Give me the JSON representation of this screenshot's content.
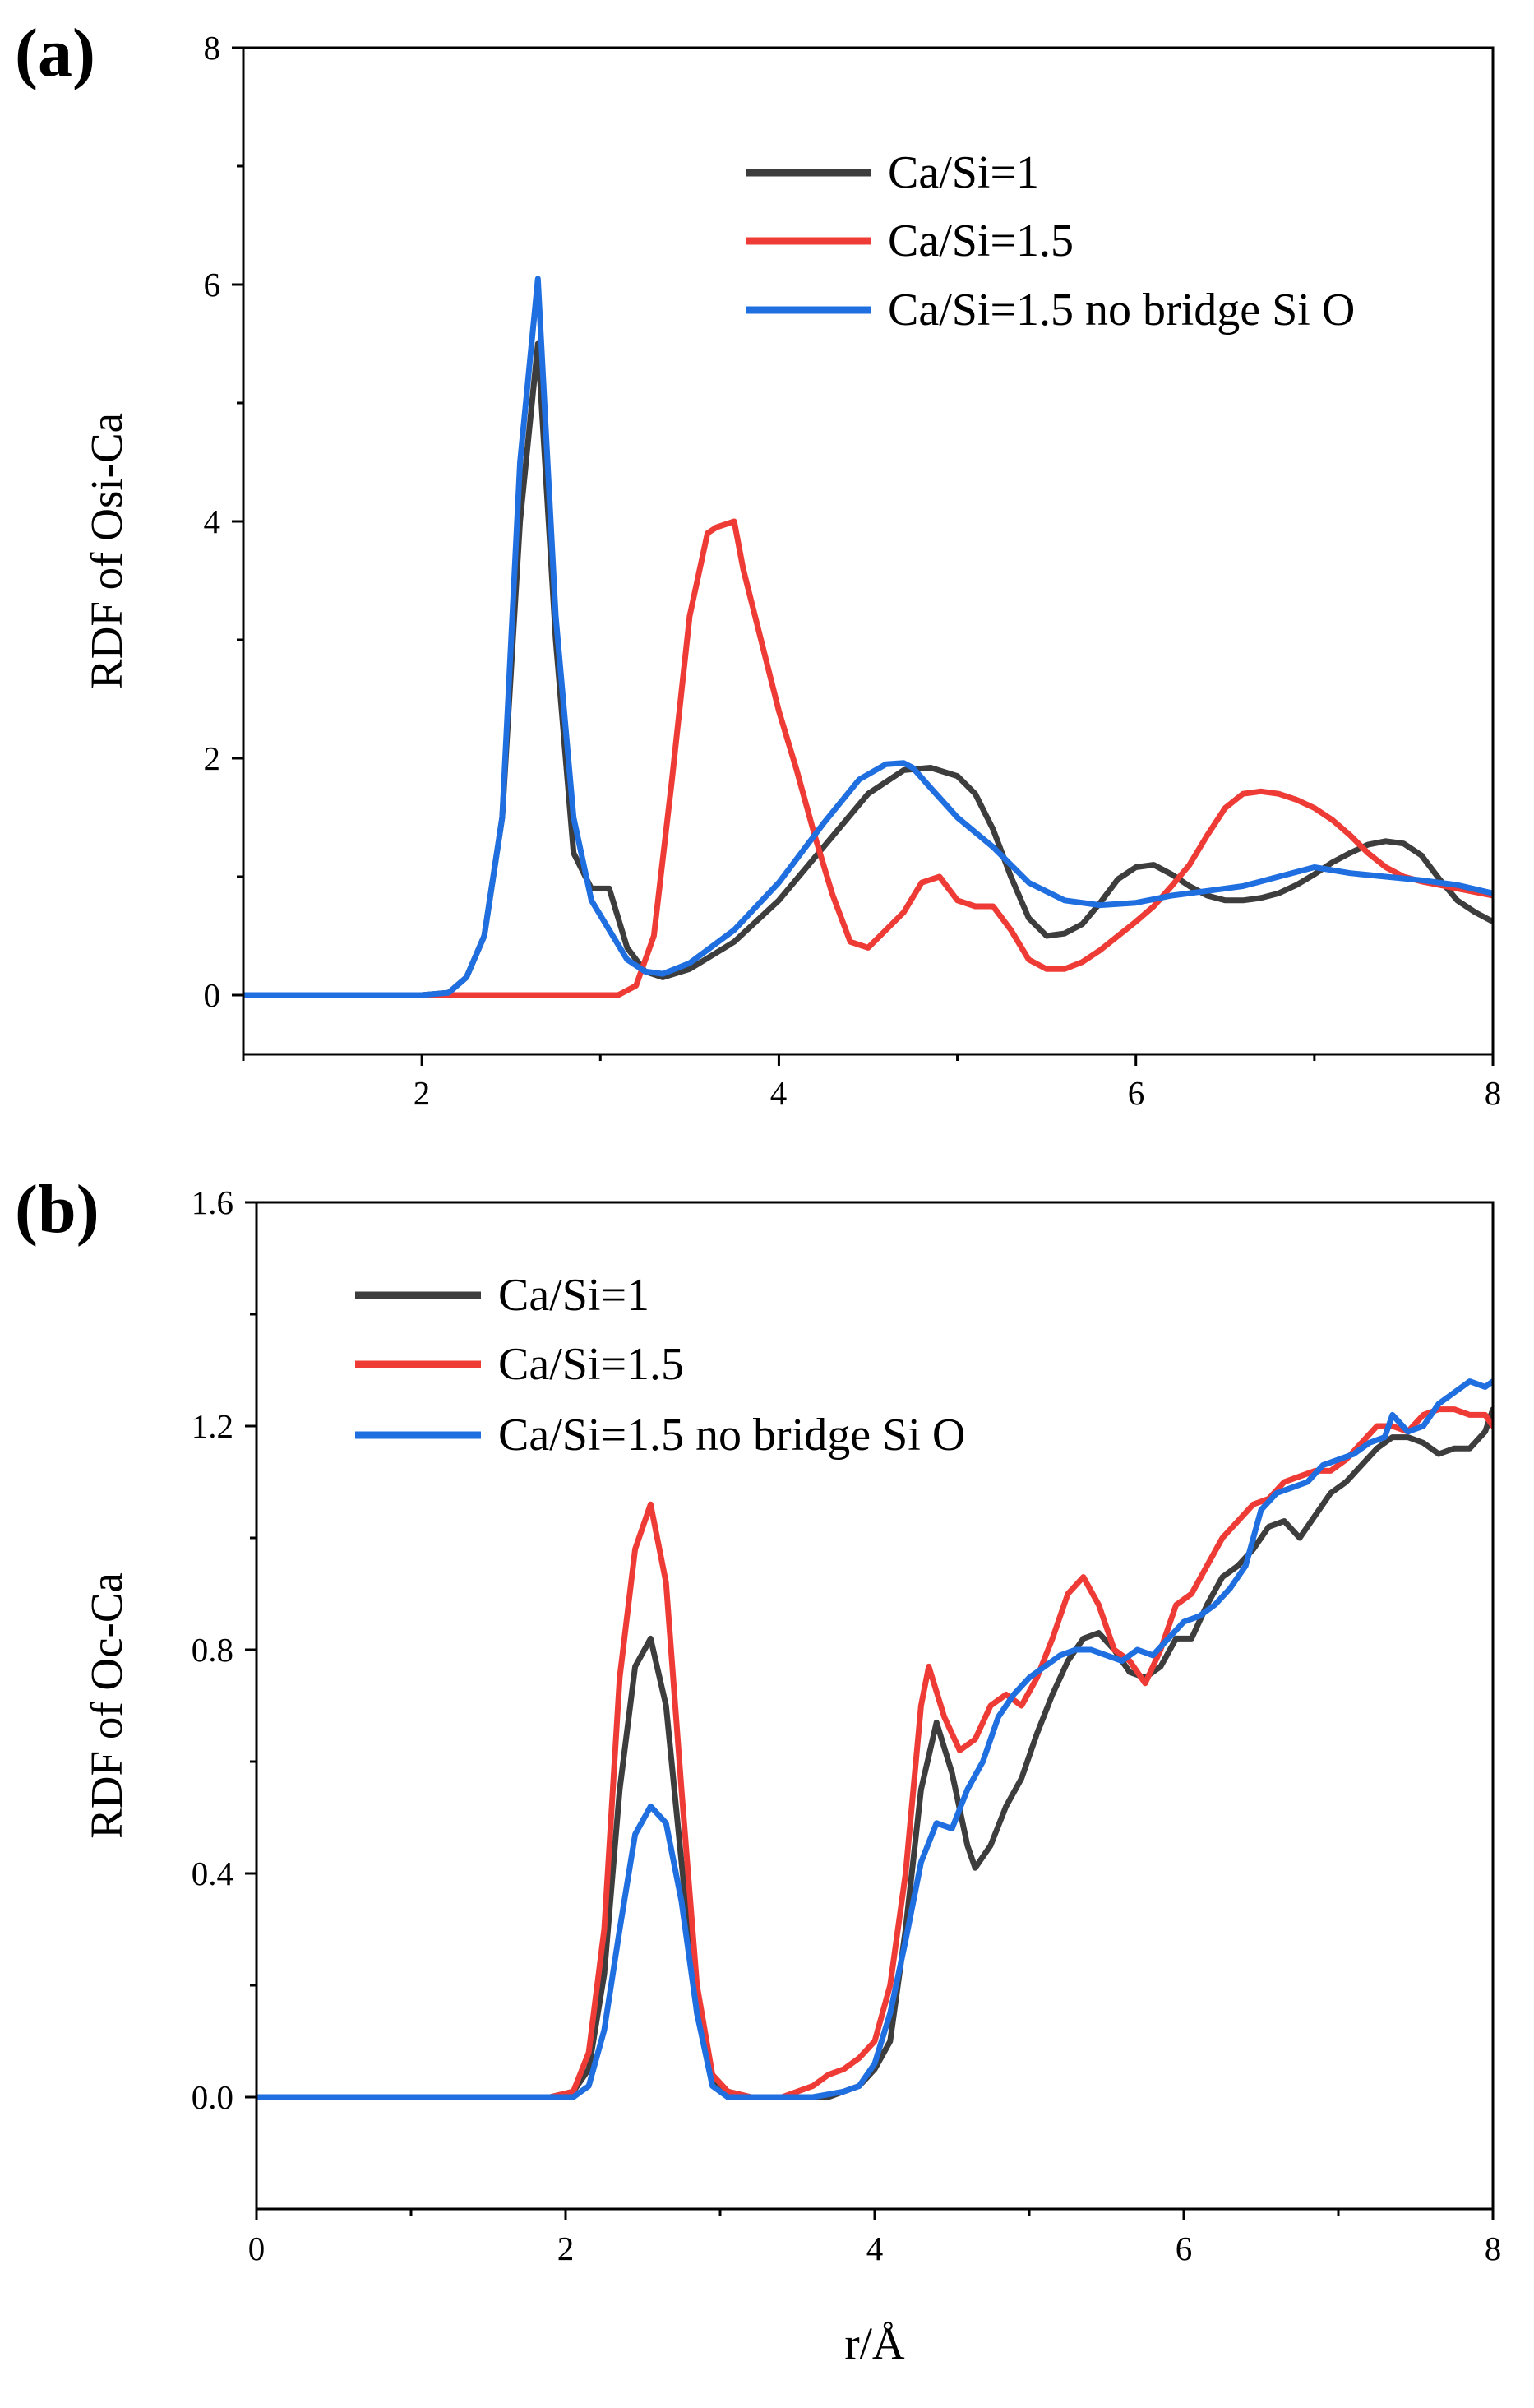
{
  "chart_data": [
    {
      "type": "line",
      "panel_label": "(a)",
      "xlabel": "",
      "ylabel": "RDF of Osi-Ca",
      "xlim": [
        1,
        8
      ],
      "ylim": [
        -0.5,
        8
      ],
      "xticks": [
        2,
        4,
        6,
        8
      ],
      "xtick_labels": [
        "2",
        "4",
        "6",
        "8"
      ],
      "yticks": [
        0,
        2,
        4,
        6,
        8
      ],
      "ytick_labels": [
        "0",
        "2",
        "4",
        "6",
        "8"
      ],
      "legend_position": "top-right",
      "series": [
        {
          "name": "Ca/Si=1",
          "color": "#3d3d3d",
          "x": [
            1.0,
            2.0,
            2.15,
            2.25,
            2.35,
            2.45,
            2.55,
            2.65,
            2.75,
            2.85,
            2.95,
            3.05,
            3.15,
            3.25,
            3.35,
            3.5,
            3.75,
            4.0,
            4.25,
            4.5,
            4.7,
            4.85,
            5.0,
            5.1,
            5.2,
            5.3,
            5.4,
            5.5,
            5.6,
            5.7,
            5.8,
            5.9,
            6.0,
            6.1,
            6.2,
            6.3,
            6.4,
            6.5,
            6.6,
            6.7,
            6.8,
            6.9,
            7.0,
            7.1,
            7.2,
            7.3,
            7.4,
            7.5,
            7.6,
            7.7,
            7.8,
            7.9,
            8.0
          ],
          "values": [
            0,
            0,
            0.02,
            0.15,
            0.5,
            1.5,
            4.0,
            5.5,
            3.0,
            1.2,
            0.9,
            0.9,
            0.4,
            0.2,
            0.15,
            0.22,
            0.45,
            0.8,
            1.25,
            1.7,
            1.9,
            1.92,
            1.85,
            1.7,
            1.4,
            1.0,
            0.65,
            0.5,
            0.52,
            0.6,
            0.78,
            0.98,
            1.08,
            1.1,
            1.02,
            0.92,
            0.84,
            0.8,
            0.8,
            0.82,
            0.86,
            0.93,
            1.02,
            1.12,
            1.2,
            1.27,
            1.3,
            1.28,
            1.18,
            0.98,
            0.8,
            0.7,
            0.62
          ]
        },
        {
          "name": "Ca/Si=1.5",
          "color": "#ef3b36",
          "x": [
            1.0,
            2.0,
            2.1,
            2.2,
            2.5,
            3.0,
            3.1,
            3.2,
            3.3,
            3.4,
            3.5,
            3.6,
            3.65,
            3.75,
            3.8,
            3.9,
            4.0,
            4.1,
            4.2,
            4.3,
            4.4,
            4.5,
            4.6,
            4.7,
            4.8,
            4.9,
            5.0,
            5.1,
            5.2,
            5.3,
            5.4,
            5.5,
            5.6,
            5.7,
            5.8,
            5.9,
            6.0,
            6.1,
            6.2,
            6.3,
            6.4,
            6.5,
            6.6,
            6.7,
            6.8,
            6.9,
            7.0,
            7.1,
            7.2,
            7.3,
            7.4,
            7.5,
            7.6,
            7.7,
            7.8,
            7.9,
            8.0
          ],
          "values": [
            0,
            0,
            0,
            0,
            0,
            0,
            0,
            0.08,
            0.5,
            1.8,
            3.2,
            3.9,
            3.95,
            4.0,
            3.6,
            3.0,
            2.4,
            1.9,
            1.35,
            0.85,
            0.45,
            0.4,
            0.55,
            0.7,
            0.95,
            1.0,
            0.8,
            0.75,
            0.75,
            0.55,
            0.3,
            0.22,
            0.22,
            0.28,
            0.38,
            0.5,
            0.62,
            0.75,
            0.92,
            1.1,
            1.35,
            1.58,
            1.7,
            1.72,
            1.7,
            1.65,
            1.58,
            1.48,
            1.35,
            1.2,
            1.08,
            1.0,
            0.96,
            0.93,
            0.9,
            0.87,
            0.84
          ]
        },
        {
          "name": "Ca/Si=1.5 no bridge Si O",
          "color": "#1f6fe0",
          "x": [
            1.0,
            2.0,
            2.15,
            2.25,
            2.35,
            2.45,
            2.55,
            2.65,
            2.75,
            2.85,
            2.95,
            3.05,
            3.15,
            3.25,
            3.35,
            3.5,
            3.75,
            4.0,
            4.25,
            4.45,
            4.6,
            4.7,
            4.75,
            4.85,
            5.0,
            5.2,
            5.4,
            5.6,
            5.8,
            6.0,
            6.2,
            6.4,
            6.6,
            6.8,
            7.0,
            7.2,
            7.4,
            7.6,
            7.8,
            8.0
          ],
          "values": [
            0,
            0,
            0.02,
            0.15,
            0.5,
            1.5,
            4.5,
            6.05,
            3.2,
            1.5,
            0.8,
            0.55,
            0.3,
            0.2,
            0.18,
            0.27,
            0.55,
            0.95,
            1.45,
            1.82,
            1.95,
            1.96,
            1.92,
            1.75,
            1.5,
            1.25,
            0.95,
            0.8,
            0.76,
            0.78,
            0.84,
            0.88,
            0.92,
            1.0,
            1.08,
            1.03,
            1.0,
            0.97,
            0.93,
            0.86
          ]
        }
      ]
    },
    {
      "type": "line",
      "panel_label": "(b)",
      "xlabel": "r/Å",
      "ylabel": "RDF of Oc-Ca",
      "xlim": [
        0,
        8
      ],
      "ylim": [
        -0.2,
        1.6
      ],
      "xticks": [
        0,
        2,
        4,
        6,
        8
      ],
      "xtick_labels": [
        "0",
        "2",
        "4",
        "6",
        "8"
      ],
      "yticks": [
        0.0,
        0.4,
        0.8,
        1.2,
        1.6
      ],
      "ytick_labels": [
        "0.0",
        "0.4",
        "0.8",
        "1.2",
        "1.6"
      ],
      "legend_position": "top-left",
      "series": [
        {
          "name": "Ca/Si=1",
          "color": "#3d3d3d",
          "x": [
            0.0,
            1.9,
            2.05,
            2.15,
            2.25,
            2.35,
            2.45,
            2.55,
            2.65,
            2.75,
            2.85,
            2.95,
            3.05,
            3.2,
            3.5,
            3.7,
            3.9,
            4.0,
            4.1,
            4.2,
            4.3,
            4.4,
            4.5,
            4.6,
            4.65,
            4.75,
            4.85,
            4.95,
            5.05,
            5.15,
            5.25,
            5.35,
            5.45,
            5.55,
            5.65,
            5.75,
            5.85,
            5.95,
            6.05,
            6.15,
            6.25,
            6.35,
            6.45,
            6.55,
            6.65,
            6.75,
            6.85,
            6.95,
            7.05,
            7.15,
            7.25,
            7.35,
            7.45,
            7.55,
            7.65,
            7.75,
            7.85,
            7.95,
            8.0
          ],
          "values": [
            0,
            0,
            0.01,
            0.05,
            0.22,
            0.55,
            0.77,
            0.82,
            0.7,
            0.42,
            0.15,
            0.03,
            0.01,
            0.0,
            0.0,
            0.0,
            0.02,
            0.05,
            0.1,
            0.3,
            0.55,
            0.67,
            0.58,
            0.45,
            0.41,
            0.45,
            0.52,
            0.57,
            0.65,
            0.72,
            0.78,
            0.82,
            0.83,
            0.8,
            0.76,
            0.75,
            0.77,
            0.82,
            0.82,
            0.88,
            0.93,
            0.95,
            0.98,
            1.02,
            1.03,
            1.0,
            1.04,
            1.08,
            1.1,
            1.13,
            1.16,
            1.18,
            1.18,
            1.17,
            1.15,
            1.16,
            1.16,
            1.19,
            1.23
          ]
        },
        {
          "name": "Ca/Si=1.5",
          "color": "#ef3b36",
          "x": [
            0.0,
            1.9,
            2.05,
            2.15,
            2.25,
            2.35,
            2.45,
            2.55,
            2.65,
            2.75,
            2.85,
            2.95,
            3.05,
            3.2,
            3.4,
            3.5,
            3.6,
            3.7,
            3.8,
            3.9,
            4.0,
            4.1,
            4.2,
            4.3,
            4.35,
            4.45,
            4.55,
            4.65,
            4.75,
            4.85,
            4.95,
            5.05,
            5.15,
            5.25,
            5.35,
            5.45,
            5.55,
            5.65,
            5.75,
            5.85,
            5.95,
            6.05,
            6.15,
            6.25,
            6.35,
            6.45,
            6.55,
            6.65,
            6.75,
            6.85,
            6.95,
            7.05,
            7.15,
            7.25,
            7.35,
            7.45,
            7.55,
            7.65,
            7.75,
            7.85,
            7.95,
            8.0
          ],
          "values": [
            0,
            0,
            0.01,
            0.08,
            0.3,
            0.75,
            0.98,
            1.06,
            0.92,
            0.55,
            0.2,
            0.04,
            0.01,
            0.0,
            0.0,
            0.01,
            0.02,
            0.04,
            0.05,
            0.07,
            0.1,
            0.2,
            0.4,
            0.7,
            0.77,
            0.68,
            0.62,
            0.64,
            0.7,
            0.72,
            0.7,
            0.75,
            0.82,
            0.9,
            0.93,
            0.88,
            0.8,
            0.78,
            0.74,
            0.8,
            0.88,
            0.9,
            0.95,
            1.0,
            1.03,
            1.06,
            1.07,
            1.1,
            1.11,
            1.12,
            1.12,
            1.14,
            1.17,
            1.2,
            1.2,
            1.19,
            1.22,
            1.23,
            1.23,
            1.22,
            1.22,
            1.2
          ]
        },
        {
          "name": "Ca/Si=1.5 no bridge Si O",
          "color": "#1f6fe0",
          "x": [
            0.0,
            2.05,
            2.15,
            2.25,
            2.35,
            2.45,
            2.55,
            2.65,
            2.75,
            2.85,
            2.95,
            3.05,
            3.3,
            3.6,
            3.8,
            3.9,
            4.0,
            4.1,
            4.2,
            4.3,
            4.4,
            4.5,
            4.6,
            4.7,
            4.8,
            4.9,
            5.0,
            5.1,
            5.2,
            5.3,
            5.4,
            5.5,
            5.6,
            5.7,
            5.8,
            5.9,
            6.0,
            6.1,
            6.2,
            6.3,
            6.4,
            6.5,
            6.6,
            6.7,
            6.8,
            6.9,
            7.0,
            7.1,
            7.2,
            7.3,
            7.35,
            7.45,
            7.55,
            7.65,
            7.75,
            7.85,
            7.95,
            8.0
          ],
          "values": [
            0,
            0,
            0.02,
            0.12,
            0.3,
            0.47,
            0.52,
            0.49,
            0.35,
            0.15,
            0.02,
            0.0,
            0.0,
            0.0,
            0.01,
            0.02,
            0.06,
            0.15,
            0.28,
            0.42,
            0.49,
            0.48,
            0.55,
            0.6,
            0.68,
            0.72,
            0.75,
            0.77,
            0.79,
            0.8,
            0.8,
            0.79,
            0.78,
            0.8,
            0.79,
            0.82,
            0.85,
            0.86,
            0.88,
            0.91,
            0.95,
            1.05,
            1.08,
            1.09,
            1.1,
            1.13,
            1.14,
            1.15,
            1.17,
            1.18,
            1.22,
            1.19,
            1.2,
            1.24,
            1.26,
            1.28,
            1.27,
            1.28
          ]
        }
      ]
    }
  ]
}
